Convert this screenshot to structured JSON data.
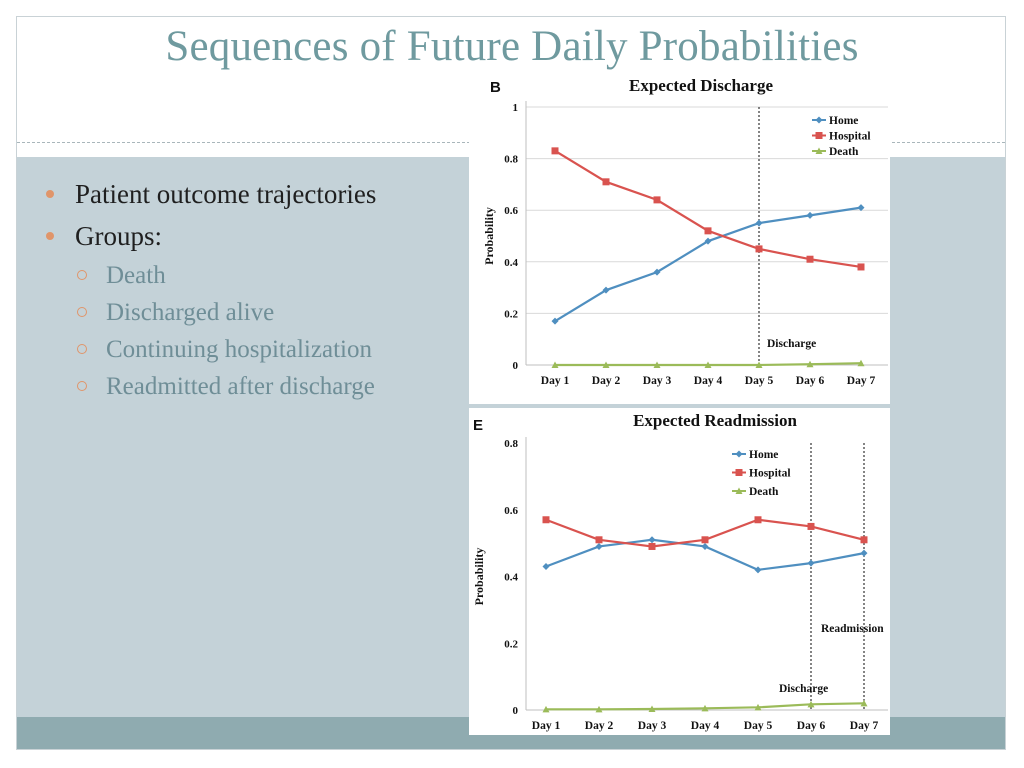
{
  "slide": {
    "title": "Sequences of Future Daily Probabilities",
    "bullets": [
      "Patient outcome trajectories",
      "Groups:"
    ],
    "sub_bullets": [
      "Death",
      "Discharged alive",
      "Continuing hospitalization",
      "Readmitted after discharge"
    ]
  },
  "colors": {
    "title": "#6f9a9f",
    "content_background": "#c4d2d8",
    "bottom_bar": "#8fabb0",
    "bullet_marker": "#e0956a",
    "sub_bullet_text": "#6f8e97"
  },
  "chart_data": [
    {
      "type": "line",
      "panel_label": "B",
      "title": "Expected Discharge",
      "xlabel": "",
      "ylabel": "Probability",
      "categories": [
        "Day 1",
        "Day 2",
        "Day 3",
        "Day 4",
        "Day 5",
        "Day 6",
        "Day 7"
      ],
      "ylim": [
        0,
        1
      ],
      "yticks": [
        0,
        0.2,
        0.4,
        0.6,
        0.8,
        1
      ],
      "ytick_labels": [
        "0",
        "0.2",
        "0.4",
        "0.6",
        "0.8",
        "1"
      ],
      "grid": true,
      "legend": "top-right",
      "series": [
        {
          "name": "Home",
          "color": "#4f8fc0",
          "marker": "diamond",
          "values": [
            0.17,
            0.29,
            0.36,
            0.48,
            0.55,
            0.58,
            0.61
          ]
        },
        {
          "name": "Hospital",
          "color": "#d9534f",
          "marker": "square",
          "values": [
            0.83,
            0.71,
            0.64,
            0.52,
            0.45,
            0.41,
            0.38
          ]
        },
        {
          "name": "Death",
          "color": "#9bbb59",
          "marker": "triangle",
          "values": [
            0.0,
            0.0,
            0.0,
            0.0,
            0.0,
            0.003,
            0.007
          ]
        }
      ],
      "annotations": [
        {
          "text": "Discharge",
          "x": "Day 5"
        }
      ]
    },
    {
      "type": "line",
      "panel_label": "E",
      "title": "Expected Readmission",
      "xlabel": "",
      "ylabel": "Probability",
      "categories": [
        "Day 1",
        "Day 2",
        "Day 3",
        "Day 4",
        "Day 5",
        "Day 6",
        "Day 7"
      ],
      "ylim": [
        0,
        0.8
      ],
      "yticks": [
        0,
        0.2,
        0.4,
        0.6,
        0.8
      ],
      "ytick_labels": [
        "0",
        "0.2",
        "0.4",
        "0.6",
        "0.8"
      ],
      "grid": false,
      "legend": "top-center",
      "series": [
        {
          "name": "Home",
          "color": "#4f8fc0",
          "marker": "diamond",
          "values": [
            0.43,
            0.49,
            0.51,
            0.49,
            0.42,
            0.44,
            0.47
          ]
        },
        {
          "name": "Hospital",
          "color": "#d9534f",
          "marker": "square",
          "values": [
            0.57,
            0.51,
            0.49,
            0.51,
            0.57,
            0.55,
            0.51
          ]
        },
        {
          "name": "Death",
          "color": "#9bbb59",
          "marker": "triangle",
          "values": [
            0.002,
            0.002,
            0.003,
            0.005,
            0.008,
            0.017,
            0.02
          ]
        }
      ],
      "annotations": [
        {
          "text": "Discharge",
          "x": "Day 6"
        },
        {
          "text": "Readmission",
          "x": "Day 7"
        }
      ]
    }
  ]
}
